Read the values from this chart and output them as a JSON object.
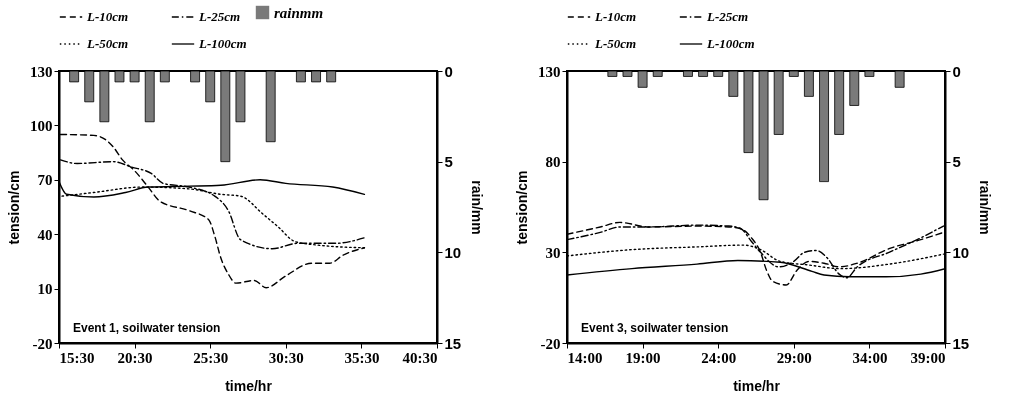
{
  "chart_data": [
    {
      "type": "line",
      "xlabel": "time/hr",
      "ylabel": "tension/cm",
      "y2label": "rain/mm",
      "legend": "top",
      "grid": false,
      "annotations": [
        "Event 1, soilwater tension"
      ],
      "xlim": [
        15.5,
        40.5
      ],
      "xticks": [
        {
          "value": 15.5,
          "label": "15:30"
        },
        {
          "value": 20.5,
          "label": "20:30"
        },
        {
          "value": 25.5,
          "label": "25:30"
        },
        {
          "value": 30.5,
          "label": "30:30"
        },
        {
          "value": 35.5,
          "label": "35:30"
        },
        {
          "value": 40.5,
          "label": "40:30"
        }
      ],
      "ylim": [
        -20,
        130
      ],
      "yticks": [
        -20,
        10,
        40,
        70,
        100,
        130
      ],
      "y2lim": [
        15,
        0
      ],
      "y2ticks": [
        0,
        5,
        10,
        15
      ],
      "series": [
        {
          "name": "L-10cm",
          "color": "#000000",
          "line_style": "dashed",
          "x": [
            15.6,
            17.8,
            18.6,
            19.1,
            19.7,
            20.5,
            21.4,
            22.2,
            24.1,
            25.4,
            25.8,
            26.2,
            26.7,
            27.2,
            28.4,
            29.2,
            30.5,
            32.2,
            33.4,
            34.3,
            35.7
          ],
          "values": [
            95,
            94.5,
            92,
            88,
            81,
            75,
            66,
            58,
            53,
            48,
            39,
            27,
            18,
            13,
            14.5,
            10.5,
            17,
            24,
            24,
            28.5,
            32.5
          ]
        },
        {
          "name": "L-25cm",
          "color": "#000000",
          "line_style": "dashdot",
          "x": [
            15.6,
            16.7,
            19.1,
            20.3,
            21.6,
            22.4,
            24.1,
            25.8,
            26.7,
            27.5,
            29.6,
            31.3,
            33.8,
            35.7
          ],
          "values": [
            81,
            79,
            80,
            77,
            73.5,
            68,
            66,
            61,
            53,
            37,
            32,
            35,
            35,
            38
          ]
        },
        {
          "name": "L-50cm",
          "color": "#000000",
          "line_style": "dotted",
          "x": [
            15.7,
            17.8,
            21,
            24.1,
            26.2,
            27.5,
            29,
            30,
            31.1,
            32.6,
            35.7
          ],
          "values": [
            61,
            63,
            66,
            65,
            62,
            61,
            51,
            44,
            36,
            34,
            32.5
          ]
        },
        {
          "name": "L-100cm",
          "color": "#000000",
          "line_style": "solid",
          "x": [
            15.5,
            16,
            17.8,
            19.9,
            21.4,
            24.1,
            26.2,
            28.8,
            30.5,
            33.6,
            35.7
          ],
          "values": [
            69,
            62,
            60.5,
            63,
            66,
            66.5,
            67,
            70,
            68,
            66,
            62
          ]
        },
        {
          "name": "rainmm",
          "type": "bar",
          "axis": "y2",
          "color": "#7a7a7a",
          "x": [
            16.5,
            17.5,
            18.5,
            19.5,
            20.5,
            21.5,
            22.5,
            24.5,
            25.5,
            26.5,
            27.5,
            29.5,
            31.5,
            32.5,
            33.5
          ],
          "values": [
            0.6,
            1.7,
            2.8,
            0.6,
            0.6,
            2.8,
            0.6,
            0.6,
            1.7,
            5,
            2.8,
            3.9,
            0.6,
            0.6,
            0.6
          ]
        }
      ]
    },
    {
      "type": "line",
      "xlabel": "time/hr",
      "ylabel": "tension/cm",
      "y2label": "rain/mm",
      "legend": "top",
      "grid": false,
      "annotations": [
        "Event 3, soilwater tension"
      ],
      "xlim": [
        14,
        39
      ],
      "xticks": [
        {
          "value": 14,
          "label": "14:00"
        },
        {
          "value": 19,
          "label": "19:00"
        },
        {
          "value": 24,
          "label": "24:00"
        },
        {
          "value": 29,
          "label": "29:00"
        },
        {
          "value": 34,
          "label": "34:00"
        },
        {
          "value": 39,
          "label": "39:00"
        }
      ],
      "ylim": [
        -20,
        130
      ],
      "yticks": [
        -20,
        30,
        80,
        130
      ],
      "y2lim": [
        15,
        0
      ],
      "y2ticks": [
        0,
        5,
        10,
        15
      ],
      "series": [
        {
          "name": "L-10cm",
          "color": "#000000",
          "line_style": "dashed",
          "x": [
            14,
            16.2,
            17.5,
            19.4,
            22.6,
            24.7,
            25.5,
            26.2,
            26.8,
            27.2,
            27.6,
            28.5,
            29.2,
            30,
            31,
            32,
            33.2,
            35.3,
            37.4,
            38.9
          ],
          "values": [
            40,
            44,
            46.5,
            44,
            44.5,
            44,
            43,
            38,
            30,
            20,
            14,
            12,
            20,
            25,
            24,
            22,
            24,
            32,
            37,
            41
          ]
        },
        {
          "name": "L-25cm",
          "color": "#000000",
          "line_style": "dashdot",
          "x": [
            14,
            16.2,
            17.5,
            19.4,
            22.6,
            24.7,
            25.5,
            26.2,
            26.8,
            28,
            29,
            29.7,
            30.5,
            31.2,
            32,
            32.5,
            33.2,
            35.3,
            37.4,
            38.9
          ],
          "values": [
            37,
            41,
            44,
            44,
            45,
            44.5,
            43,
            36,
            30,
            22,
            25,
            30,
            31,
            27,
            18,
            16,
            22,
            30,
            38,
            44.5
          ]
        },
        {
          "name": "L-50cm",
          "color": "#000000",
          "line_style": "dotted",
          "x": [
            14,
            18.3,
            22.6,
            25.7,
            26.8,
            28.1,
            30,
            32.1,
            35.3,
            38.9
          ],
          "values": [
            28,
            31.5,
            33,
            34,
            31.5,
            25,
            23,
            21,
            23.5,
            29
          ]
        },
        {
          "name": "L-100cm",
          "color": "#000000",
          "line_style": "solid",
          "x": [
            14,
            18.3,
            22.6,
            25.3,
            28.1,
            30.2,
            31,
            32.7,
            35.1,
            37.4,
            39
          ],
          "values": [
            17.5,
            21,
            23.5,
            25.5,
            24.5,
            19.5,
            17.5,
            16.5,
            16.5,
            18,
            21
          ]
        },
        {
          "type": "bar",
          "axis": "y2",
          "color": "#7a7a7a",
          "x": [
            17,
            18,
            19,
            20,
            22,
            23,
            24,
            25,
            26,
            27,
            28,
            29,
            30,
            31,
            32,
            33,
            34,
            36
          ],
          "values": [
            0.3,
            0.3,
            0.9,
            0.3,
            0.3,
            0.3,
            0.3,
            1.4,
            4.5,
            7.1,
            3.5,
            0.3,
            1.4,
            6.1,
            3.5,
            1.9,
            0.3,
            0.9
          ]
        }
      ]
    }
  ]
}
